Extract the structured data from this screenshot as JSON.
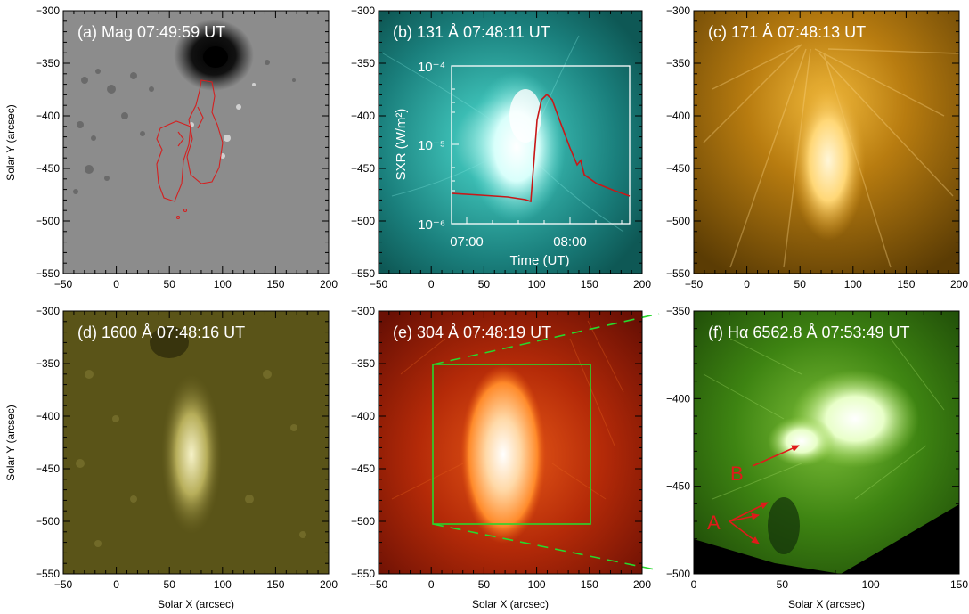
{
  "figure": {
    "axis_label_x": "Solar X (arcsec)",
    "axis_label_y": "Solar Y (arcsec)",
    "panels": [
      {
        "title": "(a) Mag  07:49:59 UT",
        "x_ticks": [
          "−50",
          "0",
          "50",
          "100",
          "150",
          "200"
        ],
        "y_ticks": [
          "−300",
          "−350",
          "−400",
          "−450",
          "−500",
          "−550"
        ]
      },
      {
        "title": "(b) 131 Å 07:48:11 UT",
        "x_ticks": [
          "−50",
          "0",
          "50",
          "100",
          "150",
          "200"
        ],
        "y_ticks": [
          "−300",
          "−350",
          "−400",
          "−450",
          "−500",
          "−550"
        ]
      },
      {
        "title": "(c) 171 Å 07:48:13 UT",
        "x_ticks": [
          "−50",
          "0",
          "50",
          "100",
          "150",
          "200"
        ],
        "y_ticks": [
          "−300",
          "−350",
          "−400",
          "−450",
          "−500",
          "−550"
        ]
      },
      {
        "title": "(d) 1600 Å 07:48:16 UT",
        "x_ticks": [
          "−50",
          "0",
          "50",
          "100",
          "150",
          "200"
        ],
        "y_ticks": [
          "−300",
          "−350",
          "−400",
          "−450",
          "−500",
          "−550"
        ]
      },
      {
        "title": "(e) 304 Å 07:48:19 UT",
        "x_ticks": [
          "−50",
          "0",
          "50",
          "100",
          "150",
          "200"
        ],
        "y_ticks": [
          "−300",
          "−350",
          "−400",
          "−450",
          "−500",
          "−550"
        ]
      },
      {
        "title": "(f) Hα 6562.8 Å 07:53:49 UT",
        "x_ticks": [
          "0",
          "50",
          "100",
          "150"
        ],
        "y_ticks": [
          "−350",
          "−400",
          "−450",
          "−500"
        ]
      }
    ],
    "inset": {
      "ylabel": "SXR (W/m²)",
      "xlabel": "Time (UT)",
      "y_ticks": [
        "10⁻⁴",
        "10⁻⁵",
        "10⁻⁶"
      ],
      "x_ticks": [
        "07:00",
        "08:00"
      ]
    },
    "markers": {
      "a": "A",
      "b": "B"
    },
    "colors": {
      "contour": "#d42020",
      "box": "#27d82d",
      "arrow": "#e01a1a",
      "curve": "#c81818",
      "mag_bg": "#8c8c8c",
      "aia131": "#1f8f8a",
      "aia171": "#b27a10",
      "aia1600": "#5a5418",
      "aia304": "#b02808",
      "halpha": "#3e7f12"
    }
  }
}
